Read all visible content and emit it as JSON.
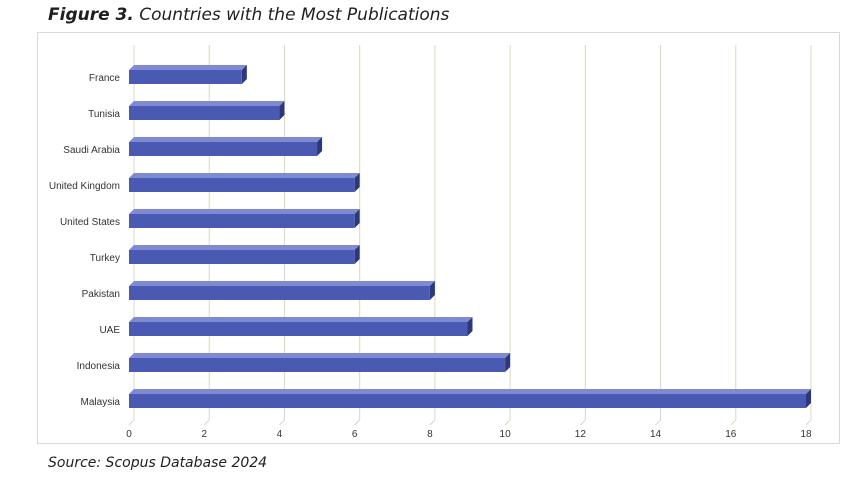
{
  "figure": {
    "number": "Figure 3.",
    "title": "Countries with the Most Publications"
  },
  "source_note": "Source: Scopus Database 2024",
  "colors": {
    "bar_front": "#4a5ab3",
    "bar_top": "#7e8bd2",
    "bar_side": "#2d3878",
    "gridline": "#d8d8c0"
  },
  "chart_data": {
    "type": "bar",
    "orientation": "horizontal",
    "style": "3d",
    "categories": [
      "France",
      "Tunisia",
      "Saudi Arabia",
      "United Kingdom",
      "United States",
      "Turkey",
      "Pakistan",
      "UAE",
      "Indonesia",
      "Malaysia"
    ],
    "values": [
      3,
      4,
      5,
      6,
      6,
      6,
      8,
      9,
      10,
      18
    ],
    "xlim": [
      0,
      18
    ],
    "xticks": [
      0,
      2,
      4,
      6,
      8,
      10,
      12,
      14,
      16,
      18
    ],
    "grid": "vertical",
    "legend": "none",
    "xlabel": "",
    "ylabel": ""
  }
}
